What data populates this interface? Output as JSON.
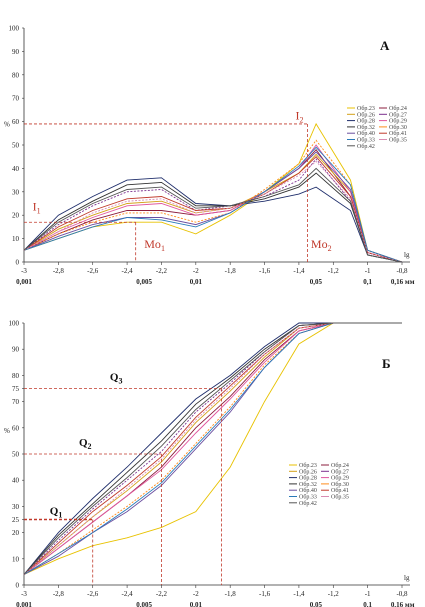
{
  "chart_data": [
    {
      "type": "line",
      "panel_label": "А",
      "ylabel": "%",
      "xlabel": "lg",
      "ylim": [
        0,
        100
      ],
      "xlim": [
        -3,
        -0.8
      ],
      "yticks": [
        "0",
        "10",
        "20",
        "30",
        "40",
        "50",
        "60",
        "70",
        "80",
        "90",
        "100"
      ],
      "xticks": [
        "-3",
        "-2,8",
        "-2,6",
        "-2,4",
        "-2,2",
        "-2",
        "-1,8",
        "-1,6",
        "-1,4",
        "-1,2",
        "-1",
        "-0,8"
      ],
      "xticks_mm": [
        "0,001",
        "0,005",
        "0,01",
        "0,05",
        "0,1",
        "0,16 мм"
      ],
      "annotations": [
        "I1",
        "Mo1",
        "I2",
        "Mo2"
      ],
      "annotation_points": {
        "I1": [
          -2.35,
          17
        ],
        "I2": [
          -1.35,
          59
        ]
      },
      "legend": [
        "Обр.23",
        "Обр.24",
        "Обр.26",
        "Обр.27",
        "Обр.28",
        "Обр.29",
        "Обр.32",
        "Обр.30",
        "Обр.40",
        "Обр.41",
        "Обр.33",
        "Обр.35",
        "Обр.42"
      ],
      "colors": [
        "#e8c200",
        "#8b1c3c",
        "#d4a017",
        "#7b2f8e",
        "#1f2e6b",
        "#e0559d",
        "#333333",
        "#ff8c1a",
        "#6b4fa0",
        "#c0392b",
        "#2a7ab8",
        "#d98cb3",
        "#555555"
      ],
      "series": [
        {
          "name": "Обр.23",
          "y": [
            5,
            10,
            15,
            17,
            17,
            12,
            20,
            30,
            42,
            59,
            35,
            5,
            0
          ]
        },
        {
          "name": "Обр.24",
          "y": [
            5,
            12,
            18,
            22,
            22,
            20,
            22,
            30,
            40,
            48,
            28,
            4,
            0
          ]
        },
        {
          "name": "Обр.26",
          "y": [
            5,
            14,
            20,
            25,
            26,
            21,
            23,
            30,
            38,
            46,
            30,
            4,
            0
          ]
        },
        {
          "name": "Обр.27",
          "y": [
            5,
            16,
            24,
            30,
            31,
            22,
            24,
            28,
            35,
            44,
            26,
            4,
            0
          ]
        },
        {
          "name": "Обр.28",
          "y": [
            5,
            20,
            28,
            35,
            36,
            25,
            24,
            26,
            29,
            32,
            22,
            3,
            0
          ]
        },
        {
          "name": "Обр.29",
          "y": [
            5,
            13,
            19,
            24,
            25,
            20,
            22,
            30,
            40,
            50,
            30,
            4,
            0
          ]
        },
        {
          "name": "Обр.32",
          "y": [
            5,
            18,
            26,
            33,
            34,
            24,
            24,
            27,
            32,
            38,
            25,
            3,
            0
          ]
        },
        {
          "name": "Обр.30",
          "y": [
            5,
            12,
            17,
            21,
            21,
            17,
            21,
            31,
            42,
            52,
            33,
            5,
            0
          ]
        },
        {
          "name": "Обр.40",
          "y": [
            5,
            11,
            16,
            19,
            19,
            16,
            21,
            30,
            40,
            47,
            31,
            5,
            0
          ]
        },
        {
          "name": "Обр.41",
          "y": [
            5,
            15,
            22,
            27,
            28,
            22,
            23,
            29,
            38,
            45,
            28,
            4,
            0
          ]
        },
        {
          "name": "Обр.33",
          "y": [
            5,
            10,
            15,
            19,
            18,
            15,
            21,
            30,
            41,
            49,
            33,
            5,
            0
          ]
        },
        {
          "name": "Обр.35",
          "y": [
            5,
            13,
            21,
            26,
            27,
            21,
            23,
            29,
            37,
            43,
            27,
            4,
            0
          ]
        },
        {
          "name": "Обр.42",
          "y": [
            5,
            17,
            25,
            31,
            32,
            23,
            24,
            28,
            33,
            40,
            26,
            3,
            0
          ]
        }
      ],
      "x": [
        -3,
        -2.8,
        -2.6,
        -2.4,
        -2.2,
        -2,
        -1.8,
        -1.6,
        -1.4,
        -1.3,
        -1.1,
        -1,
        -0.8
      ]
    },
    {
      "type": "line",
      "panel_label": "Б",
      "ylabel": "%",
      "xlabel": "lg",
      "ylim": [
        0,
        100
      ],
      "xlim": [
        -3,
        -0.8
      ],
      "yticks": [
        "0",
        "10",
        "20",
        "25",
        "30",
        "40",
        "50",
        "60",
        "70",
        "75",
        "80",
        "90",
        "100"
      ],
      "xticks": [
        "-3",
        "-2,8",
        "-2,6",
        "-2,4",
        "-2,2",
        "-2",
        "-1,8",
        "-1,6",
        "-1,4",
        "-1,2",
        "-1",
        "-0,8"
      ],
      "xticks_mm": [
        "0,001",
        "0,005",
        "0,01",
        "0,05",
        "0,1",
        "0,16 мм"
      ],
      "annotations": [
        "Q1",
        "Q2",
        "Q3"
      ],
      "annotation_points": {
        "Q1": [
          -2.6,
          25
        ],
        "Q2": [
          -2.2,
          50
        ],
        "Q3": [
          -1.85,
          75
        ]
      },
      "legend": [
        "Обр.23",
        "Обр.24",
        "Обр.26",
        "Обр.27",
        "Обр.28",
        "Обр.29",
        "Обр.32",
        "Обр.30",
        "Обр.40",
        "Обр.41",
        "Обр.33",
        "Обр.35",
        "Обр.42"
      ],
      "colors": [
        "#e8c200",
        "#8b1c3c",
        "#d4a017",
        "#7b2f8e",
        "#1f2e6b",
        "#e0559d",
        "#333333",
        "#ff8c1a",
        "#6b4fa0",
        "#c0392b",
        "#2a7ab8",
        "#d98cb3",
        "#555555"
      ],
      "series": [
        {
          "name": "Обр.23",
          "y": [
            4,
            10,
            15,
            18,
            22,
            28,
            45,
            70,
            92,
            100,
            100,
            100
          ]
        },
        {
          "name": "Обр.24",
          "y": [
            4,
            14,
            24,
            34,
            45,
            60,
            72,
            86,
            97,
            100,
            100,
            100
          ]
        },
        {
          "name": "Обр.26",
          "y": [
            4,
            15,
            26,
            36,
            47,
            62,
            74,
            87,
            98,
            100,
            100,
            100
          ]
        },
        {
          "name": "Обр.27",
          "y": [
            4,
            17,
            29,
            40,
            51,
            66,
            77,
            89,
            99,
            100,
            100,
            100
          ]
        },
        {
          "name": "Обр.28",
          "y": [
            4,
            20,
            33,
            45,
            58,
            71,
            80,
            91,
            100,
            100,
            100,
            100
          ]
        },
        {
          "name": "Обр.29",
          "y": [
            4,
            14,
            24,
            34,
            44,
            58,
            71,
            85,
            97,
            100,
            100,
            100
          ]
        },
        {
          "name": "Обр.32",
          "y": [
            4,
            19,
            31,
            43,
            55,
            69,
            79,
            90,
            99,
            100,
            100,
            100
          ]
        },
        {
          "name": "Обр.30",
          "y": [
            4,
            12,
            21,
            30,
            40,
            54,
            68,
            84,
            96,
            100,
            100,
            100
          ]
        },
        {
          "name": "Обр.40",
          "y": [
            4,
            11,
            20,
            28,
            38,
            52,
            66,
            83,
            96,
            100,
            100,
            100
          ]
        },
        {
          "name": "Обр.41",
          "y": [
            4,
            16,
            28,
            38,
            49,
            64,
            76,
            88,
            98,
            100,
            100,
            100
          ]
        },
        {
          "name": "Обр.33",
          "y": [
            4,
            12,
            20,
            29,
            39,
            53,
            67,
            83,
            96,
            100,
            100,
            100
          ]
        },
        {
          "name": "Обр.35",
          "y": [
            4,
            15,
            26,
            37,
            48,
            63,
            75,
            88,
            98,
            100,
            100,
            100
          ]
        },
        {
          "name": "Обр.42",
          "y": [
            4,
            18,
            30,
            41,
            53,
            67,
            78,
            89,
            99,
            100,
            100,
            100
          ]
        }
      ],
      "x": [
        -3,
        -2.8,
        -2.6,
        -2.4,
        -2.2,
        -2,
        -1.8,
        -1.6,
        -1.4,
        -1.2,
        -1,
        -0.8
      ]
    }
  ]
}
